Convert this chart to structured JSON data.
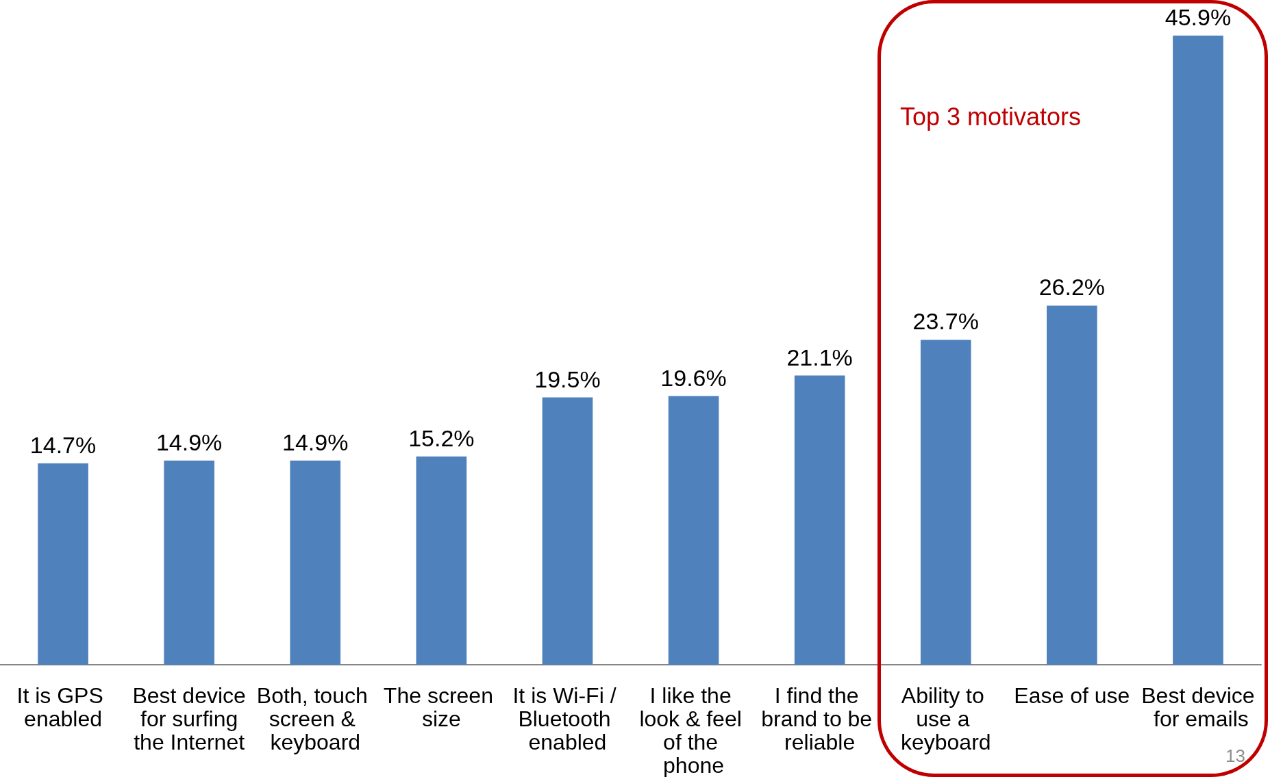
{
  "chart_data": {
    "type": "bar",
    "categories": [
      "It is GPS enabled",
      "Best device for surfing the Internet",
      "Both, touch screen & keyboard",
      "The screen size",
      "It is Wi-Fi / Bluetooth enabled",
      "I like the look & feel of the phone",
      "I find the brand to be reliable",
      "Ability to use a keyboard",
      "Ease of use",
      "Best device for emails"
    ],
    "values": [
      14.7,
      14.9,
      14.9,
      15.2,
      19.5,
      19.6,
      21.1,
      23.7,
      26.2,
      45.9
    ],
    "color": "#4f81bd",
    "value_labels": [
      "14.7%",
      "14.9%",
      "14.9%",
      "15.2%",
      "19.5%",
      "19.6%",
      "21.1%",
      "23.7%",
      "26.2%",
      "45.9%"
    ],
    "tick_labels": "x",
    "annotations": [
      "Top 3 motivators",
      "13"
    ]
  }
}
